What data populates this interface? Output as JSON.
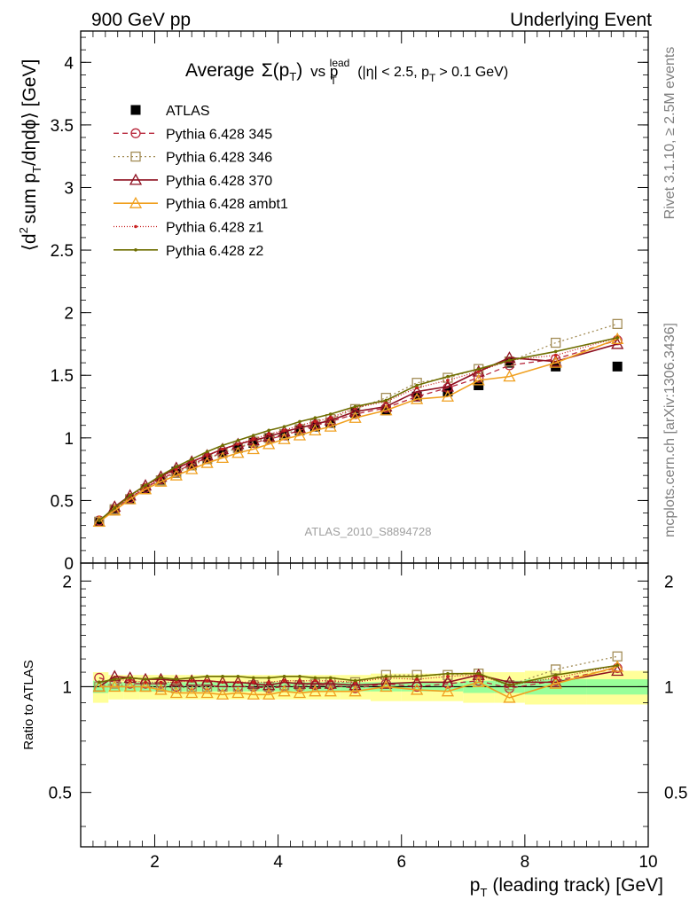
{
  "header": {
    "left": "900 GeV pp",
    "right": "Underlying Event"
  },
  "side_labels": {
    "rivet": "Rivet 3.1.10, ≥ 2.5M events",
    "mcplots": "mcplots.cern.ch [arXiv:1306.3436]"
  },
  "colors": {
    "ATLAS": "#000000",
    "p345": "#b8283c",
    "p346": "#a38d57",
    "p370": "#8e1020",
    "ambt1": "#f0a020",
    "z1": "#c81e1e",
    "z2": "#6e6e00",
    "band_inner": "#99ff99",
    "band_outer": "#ffff99"
  },
  "chart_data": [
    {
      "type": "line",
      "name": "main",
      "title_parts": {
        "average": "Average",
        "sigma": "Σ(p",
        "t": "T",
        "close": ")",
        "vs": "vs p",
        "lead": "lead",
        "cut_a": "(|η| < 2.5, p",
        "cut_b": "> 0.1 GeV)"
      },
      "ylabel_parts": {
        "a": "⟨d",
        "sup2": "2",
        "b": "sum p",
        "c": "/dηdϕ⟩ [GeV]"
      },
      "watermark": "ATLAS_2010_S8894728",
      "xlim": [
        0.8,
        10.0
      ],
      "ylim": [
        0.0,
        4.25
      ],
      "yticks": [
        0,
        0.5,
        1,
        1.5,
        2,
        2.5,
        3,
        3.5,
        4
      ],
      "ytick_labels": [
        "0",
        "0.5",
        "1",
        "1.5",
        "2",
        "2.5",
        "3",
        "3.5",
        "4"
      ],
      "x": [
        1.1,
        1.35,
        1.6,
        1.85,
        2.1,
        2.35,
        2.6,
        2.85,
        3.1,
        3.35,
        3.6,
        3.85,
        4.1,
        4.35,
        4.6,
        4.85,
        5.25,
        5.75,
        6.25,
        6.75,
        7.25,
        7.75,
        8.5,
        9.5
      ],
      "legend": [
        {
          "key": "ATLAS",
          "label": "ATLAS"
        },
        {
          "key": "p345",
          "label": "Pythia 6.428 345"
        },
        {
          "key": "p346",
          "label": "Pythia 6.428 346"
        },
        {
          "key": "p370",
          "label": "Pythia 6.428 370"
        },
        {
          "key": "ambt1",
          "label": "Pythia 6.428 ambt1"
        },
        {
          "key": "z1",
          "label": "Pythia 6.428 z1"
        },
        {
          "key": "z2",
          "label": "Pythia 6.428 z2"
        }
      ],
      "series": [
        {
          "name": "ATLAS",
          "key": "ATLAS",
          "values": [
            0.33,
            0.42,
            0.51,
            0.59,
            0.66,
            0.73,
            0.78,
            0.83,
            0.88,
            0.92,
            0.96,
            1.0,
            1.02,
            1.06,
            1.09,
            1.12,
            1.2,
            1.22,
            1.33,
            1.37,
            1.42,
            1.6,
            1.57,
            1.57
          ]
        },
        {
          "name": "Pythia 6.428 345",
          "key": "p345",
          "values": [
            0.34,
            0.43,
            0.52,
            0.6,
            0.67,
            0.73,
            0.79,
            0.84,
            0.88,
            0.92,
            0.96,
            0.99,
            1.02,
            1.06,
            1.1,
            1.13,
            1.19,
            1.24,
            1.33,
            1.4,
            1.48,
            1.58,
            1.63,
            1.78
          ]
        },
        {
          "name": "Pythia 6.428 346",
          "key": "p346",
          "values": [
            0.33,
            0.43,
            0.51,
            0.59,
            0.66,
            0.72,
            0.78,
            0.83,
            0.88,
            0.92,
            0.97,
            1.0,
            1.03,
            1.07,
            1.11,
            1.15,
            1.23,
            1.32,
            1.44,
            1.48,
            1.55,
            1.61,
            1.76,
            1.91
          ]
        },
        {
          "name": "Pythia 6.428 370",
          "key": "p370",
          "values": [
            0.33,
            0.45,
            0.54,
            0.62,
            0.69,
            0.76,
            0.81,
            0.86,
            0.91,
            0.95,
            0.98,
            1.01,
            1.05,
            1.08,
            1.11,
            1.14,
            1.21,
            1.25,
            1.37,
            1.41,
            1.53,
            1.64,
            1.61,
            1.75
          ]
        },
        {
          "name": "Pythia 6.428 ambt1",
          "key": "ambt1",
          "values": [
            0.33,
            0.42,
            0.51,
            0.59,
            0.65,
            0.7,
            0.75,
            0.8,
            0.84,
            0.88,
            0.91,
            0.95,
            0.99,
            1.02,
            1.06,
            1.09,
            1.16,
            1.22,
            1.31,
            1.33,
            1.46,
            1.49,
            1.6,
            1.79
          ]
        },
        {
          "name": "Pythia 6.428 z1",
          "key": "z1",
          "values": [
            0.34,
            0.44,
            0.53,
            0.61,
            0.68,
            0.75,
            0.81,
            0.86,
            0.91,
            0.95,
            0.99,
            1.03,
            1.06,
            1.1,
            1.13,
            1.16,
            1.24,
            1.29,
            1.4,
            1.46,
            1.53,
            1.62,
            1.66,
            1.8
          ]
        },
        {
          "name": "Pythia 6.428 z2",
          "key": "z2",
          "values": [
            0.34,
            0.44,
            0.54,
            0.62,
            0.7,
            0.77,
            0.83,
            0.89,
            0.94,
            0.98,
            1.02,
            1.06,
            1.09,
            1.13,
            1.16,
            1.19,
            1.25,
            1.3,
            1.42,
            1.49,
            1.55,
            1.62,
            1.69,
            1.8
          ]
        }
      ]
    },
    {
      "type": "line",
      "name": "ratio",
      "ylabel": "Ratio to ATLAS",
      "xlabel_parts": {
        "p": "p",
        "t": "T",
        "rest": "(leading track) [GeV]"
      },
      "xlim": [
        0.8,
        10.0
      ],
      "ylim": [
        0.35,
        2.25
      ],
      "xticks": [
        2,
        4,
        6,
        8,
        10
      ],
      "xtick_labels": [
        "2",
        "4",
        "6",
        "8",
        "10"
      ],
      "yticks": [
        0.5,
        1,
        2
      ],
      "ytick_labels": [
        "0.5",
        "1",
        "2"
      ],
      "band_edges": [
        1.0,
        1.25,
        1.5,
        1.75,
        2.0,
        2.25,
        2.5,
        2.75,
        3.0,
        3.25,
        3.5,
        3.75,
        4.0,
        4.25,
        4.5,
        4.75,
        5.0,
        5.5,
        6.0,
        6.5,
        7.0,
        7.5,
        8.0,
        9.0,
        10.0
      ],
      "band_inner_halfwidth": [
        0.04,
        0.03,
        0.03,
        0.03,
        0.03,
        0.03,
        0.03,
        0.03,
        0.03,
        0.03,
        0.03,
        0.03,
        0.03,
        0.03,
        0.03,
        0.03,
        0.03,
        0.03,
        0.03,
        0.03,
        0.04,
        0.04,
        0.05,
        0.05
      ],
      "band_outer_halfwidth": [
        0.1,
        0.08,
        0.08,
        0.08,
        0.08,
        0.08,
        0.08,
        0.08,
        0.08,
        0.08,
        0.08,
        0.08,
        0.08,
        0.08,
        0.08,
        0.08,
        0.08,
        0.09,
        0.09,
        0.09,
        0.1,
        0.1,
        0.11,
        0.11
      ],
      "x": [
        1.1,
        1.35,
        1.6,
        1.85,
        2.1,
        2.35,
        2.6,
        2.85,
        3.1,
        3.35,
        3.6,
        3.85,
        4.1,
        4.35,
        4.6,
        4.85,
        5.25,
        5.75,
        6.25,
        6.75,
        7.25,
        7.75,
        8.5,
        9.5
      ],
      "series": [
        {
          "name": "Pythia 6.428 345",
          "key": "p345",
          "values": [
            1.06,
            1.03,
            1.02,
            1.02,
            1.02,
            1.0,
            1.01,
            1.01,
            1.0,
            1.0,
            1.0,
            0.99,
            1.0,
            1.0,
            1.01,
            1.01,
            0.99,
            1.02,
            1.0,
            1.02,
            1.04,
            0.99,
            1.04,
            1.13
          ]
        },
        {
          "name": "Pythia 6.428 346",
          "key": "p346",
          "values": [
            1.0,
            1.02,
            1.0,
            1.0,
            1.0,
            0.99,
            1.0,
            1.0,
            1.0,
            1.0,
            1.01,
            1.0,
            1.01,
            1.01,
            1.02,
            1.03,
            1.03,
            1.08,
            1.08,
            1.08,
            1.09,
            1.01,
            1.12,
            1.22
          ]
        },
        {
          "name": "Pythia 6.428 370",
          "key": "p370",
          "values": [
            1.0,
            1.07,
            1.06,
            1.05,
            1.05,
            1.04,
            1.04,
            1.04,
            1.03,
            1.03,
            1.02,
            1.01,
            1.03,
            1.02,
            1.02,
            1.02,
            1.01,
            1.02,
            1.03,
            1.03,
            1.08,
            1.03,
            1.03,
            1.11
          ]
        },
        {
          "name": "Pythia 6.428 ambt1",
          "key": "ambt1",
          "values": [
            1.0,
            1.0,
            1.0,
            1.0,
            0.98,
            0.96,
            0.96,
            0.96,
            0.95,
            0.96,
            0.95,
            0.95,
            0.97,
            0.96,
            0.97,
            0.97,
            0.97,
            1.0,
            0.98,
            0.97,
            1.03,
            0.93,
            1.02,
            1.14
          ]
        },
        {
          "name": "Pythia 6.428 z1",
          "key": "z1",
          "values": [
            1.03,
            1.05,
            1.04,
            1.03,
            1.03,
            1.03,
            1.04,
            1.04,
            1.03,
            1.03,
            1.03,
            1.03,
            1.04,
            1.04,
            1.04,
            1.04,
            1.03,
            1.06,
            1.05,
            1.07,
            1.08,
            1.01,
            1.06,
            1.15
          ]
        },
        {
          "name": "Pythia 6.428 z2",
          "key": "z2",
          "values": [
            1.03,
            1.05,
            1.06,
            1.05,
            1.06,
            1.05,
            1.06,
            1.07,
            1.07,
            1.07,
            1.06,
            1.06,
            1.07,
            1.07,
            1.06,
            1.06,
            1.04,
            1.07,
            1.07,
            1.09,
            1.09,
            1.01,
            1.08,
            1.15
          ]
        }
      ]
    }
  ]
}
